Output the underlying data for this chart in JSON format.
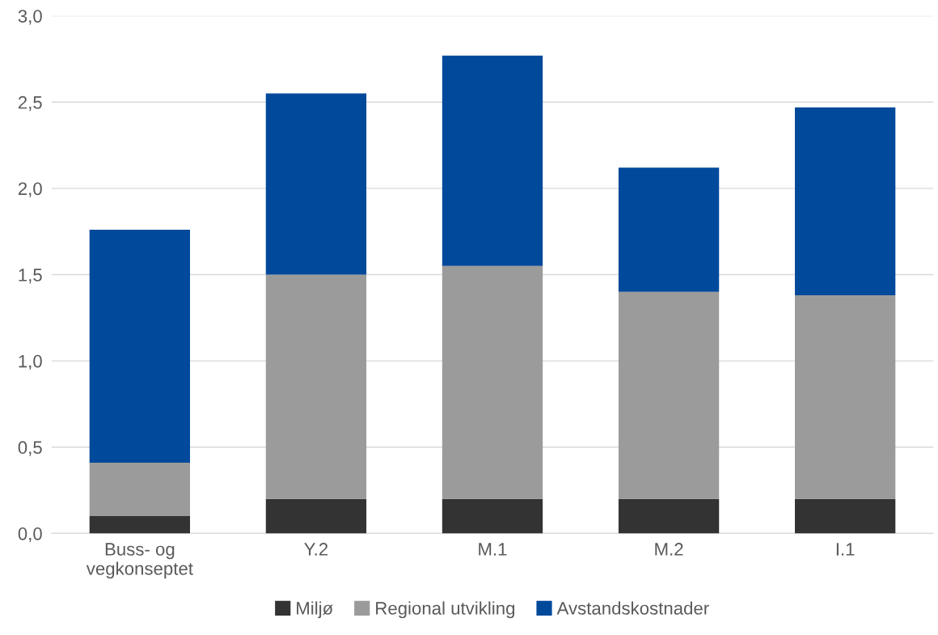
{
  "chart_data": {
    "type": "bar",
    "stacked": true,
    "categories": [
      "Buss- og\nvegkonseptet",
      "Y.2",
      "M.1",
      "M.2",
      "I.1"
    ],
    "series": [
      {
        "name": "Miljø",
        "color": "#333333",
        "values": [
          0.1,
          0.2,
          0.2,
          0.2,
          0.2
        ]
      },
      {
        "name": "Regional utvikling",
        "color": "#9b9b9b",
        "values": [
          0.31,
          1.3,
          1.35,
          1.2,
          1.18
        ]
      },
      {
        "name": "Avstandskostnader",
        "color": "#00499b",
        "values": [
          1.35,
          1.05,
          1.22,
          0.72,
          1.09
        ]
      }
    ],
    "ylim": [
      0,
      3
    ],
    "yticks": [
      {
        "value": 0,
        "label": "0,0"
      },
      {
        "value": 0.5,
        "label": "0,5"
      },
      {
        "value": 1,
        "label": "1,0"
      },
      {
        "value": 1.5,
        "label": "1,5"
      },
      {
        "value": 2,
        "label": "2,0"
      },
      {
        "value": 2.5,
        "label": "2,5"
      },
      {
        "value": 3,
        "label": "3,0"
      }
    ],
    "grid": "y",
    "legend": "bottom"
  }
}
